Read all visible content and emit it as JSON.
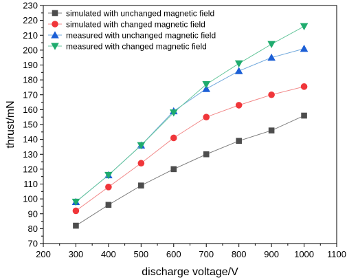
{
  "chart_data": {
    "type": "line",
    "title": "",
    "xlabel": "discharge voltage/V",
    "ylabel": "thrust/mN",
    "xlim": [
      200,
      1100
    ],
    "ylim": [
      70,
      230
    ],
    "xticks": [
      200,
      300,
      400,
      500,
      600,
      700,
      800,
      900,
      1000,
      1100
    ],
    "yticks": [
      70,
      80,
      90,
      100,
      110,
      120,
      130,
      140,
      150,
      160,
      170,
      180,
      190,
      200,
      210,
      220,
      230
    ],
    "grid": false,
    "legend_position": "top-left",
    "series": [
      {
        "name": "simulated with unchanged magnetic field",
        "marker": "square",
        "color": "#4d4d4d",
        "line_color": "#7f7f7f",
        "x": [
          300,
          400,
          500,
          600,
          700,
          800,
          900,
          1000
        ],
        "y": [
          82,
          96,
          109,
          120,
          130,
          139,
          146,
          156
        ]
      },
      {
        "name": "simulated with changed magnetic field",
        "marker": "circle",
        "color": "#f0363a",
        "line_color": "#f28b8b",
        "x": [
          300,
          400,
          500,
          600,
          700,
          800,
          900,
          1000
        ],
        "y": [
          92,
          108,
          124,
          141,
          155,
          163,
          170,
          175.5
        ]
      },
      {
        "name": "measured with unchanged magnetic field",
        "marker": "triangle-up",
        "color": "#1c5fd6",
        "line_color": "#6fa8dc",
        "x": [
          300,
          400,
          500,
          600,
          700,
          800,
          900,
          1000
        ],
        "y": [
          98,
          116,
          136,
          159,
          174,
          186,
          195,
          201
        ]
      },
      {
        "name": "measured with changed magnetic field",
        "marker": "triangle-down",
        "color": "#1fab6e",
        "line_color": "#65c69b",
        "x": [
          300,
          400,
          500,
          600,
          700,
          800,
          900,
          1000
        ],
        "y": [
          98,
          116,
          136,
          158,
          177,
          191,
          204,
          216
        ]
      }
    ]
  }
}
